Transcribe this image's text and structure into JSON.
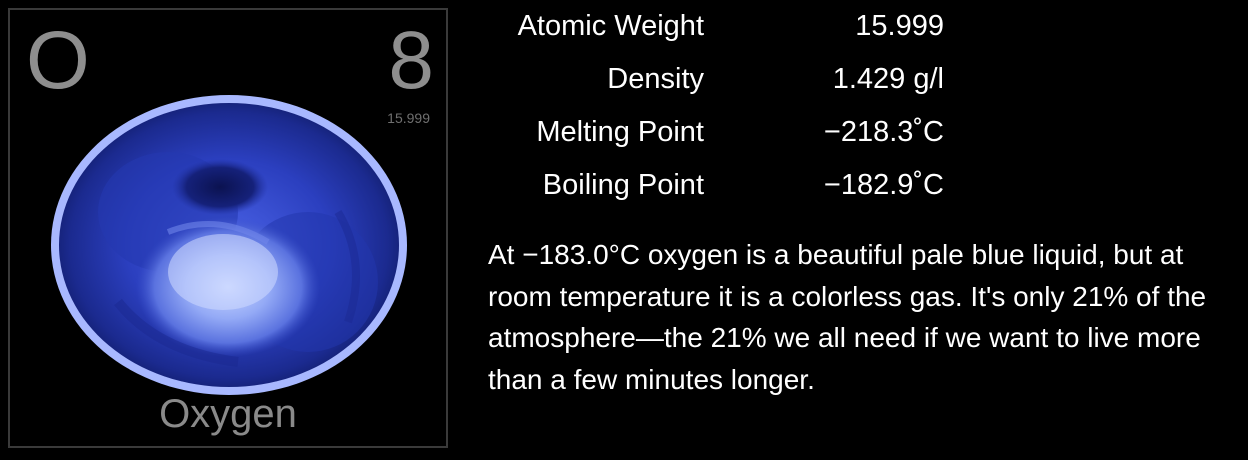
{
  "element": {
    "symbol": "O",
    "atomic_number": "8",
    "tile_weight": "15.999",
    "name": "Oxygen"
  },
  "properties": [
    {
      "label": "Atomic Weight",
      "value": "15.999"
    },
    {
      "label": "Density",
      "value": "1.429 g/l"
    },
    {
      "label": "Melting Point",
      "value": "−218.3˚C"
    },
    {
      "label": "Boiling Point",
      "value": "−182.9˚C"
    }
  ],
  "description": "At −183.0°C oxygen is a beautiful pale blue liquid, but at room temperature it is a colorless gas. It's only 21% of the atmosphere—the 21% we all need if we want to live more than a few minutes longer.",
  "colors": {
    "background": "#000000",
    "tile_text": "#8e8e8e",
    "liquid_blue": "#3a4fd0",
    "rim": "#9ab0ff"
  }
}
